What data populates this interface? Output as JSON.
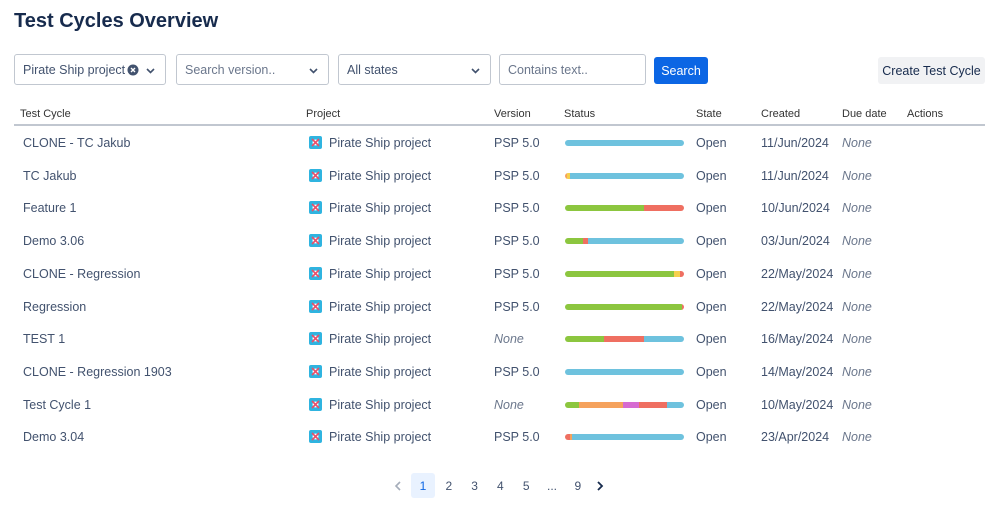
{
  "header": {
    "title": "Test Cycles Overview"
  },
  "filters": {
    "project": "Pirate Ship project",
    "version": "Search version..",
    "state": "All states",
    "text": "Contains text..",
    "search": "Search",
    "create": "Create Test Cycle"
  },
  "table": {
    "columns": [
      "Test Cycle",
      "Project",
      "Version",
      "Status",
      "State",
      "Created",
      "Due date",
      "Actions"
    ],
    "rows": [
      {
        "name": "CLONE - TC Jakub",
        "project": "Pirate Ship project",
        "version": "PSP 5.0",
        "version_italic": false,
        "status": [
          {
            "color": "#6ec2de",
            "value": 100
          }
        ],
        "state": "Open",
        "created": "11/Jun/2024",
        "due": "None"
      },
      {
        "name": "TC Jakub",
        "project": "Pirate Ship project",
        "version": "PSP 5.0",
        "version_italic": false,
        "status": [
          {
            "color": "#f5a25d",
            "value": 2
          },
          {
            "color": "#f5d04d",
            "value": 2
          },
          {
            "color": "#6ec2de",
            "value": 96
          }
        ],
        "state": "Open",
        "created": "11/Jun/2024",
        "due": "None"
      },
      {
        "name": "Feature 1",
        "project": "Pirate Ship project",
        "version": "PSP 5.0",
        "version_italic": false,
        "status": [
          {
            "color": "#8cc63f",
            "value": 66
          },
          {
            "color": "#ef6f61",
            "value": 34
          }
        ],
        "state": "Open",
        "created": "10/Jun/2024",
        "due": "None"
      },
      {
        "name": "Demo 3.06",
        "project": "Pirate Ship project",
        "version": "PSP 5.0",
        "version_italic": false,
        "status": [
          {
            "color": "#8cc63f",
            "value": 15
          },
          {
            "color": "#ef6f61",
            "value": 4
          },
          {
            "color": "#6ec2de",
            "value": 81
          }
        ],
        "state": "Open",
        "created": "03/Jun/2024",
        "due": "None"
      },
      {
        "name": "CLONE - Regression",
        "project": "Pirate Ship project",
        "version": "PSP 5.0",
        "version_italic": false,
        "status": [
          {
            "color": "#8cc63f",
            "value": 92
          },
          {
            "color": "#f5d04d",
            "value": 5
          },
          {
            "color": "#ef6f61",
            "value": 3
          }
        ],
        "state": "Open",
        "created": "22/May/2024",
        "due": "None"
      },
      {
        "name": "Regression",
        "project": "Pirate Ship project",
        "version": "PSP 5.0",
        "version_italic": false,
        "status": [
          {
            "color": "#8cc63f",
            "value": 98
          },
          {
            "color": "#ef6f61",
            "value": 2
          }
        ],
        "state": "Open",
        "created": "22/May/2024",
        "due": "None"
      },
      {
        "name": "TEST 1",
        "project": "Pirate Ship project",
        "version": "None",
        "version_italic": true,
        "status": [
          {
            "color": "#8cc63f",
            "value": 33
          },
          {
            "color": "#ef6f61",
            "value": 33
          },
          {
            "color": "#6ec2de",
            "value": 34
          }
        ],
        "state": "Open",
        "created": "16/May/2024",
        "due": "None"
      },
      {
        "name": "CLONE - Regression 1903",
        "project": "Pirate Ship project",
        "version": "PSP 5.0",
        "version_italic": false,
        "status": [
          {
            "color": "#6ec2de",
            "value": 100
          }
        ],
        "state": "Open",
        "created": "14/May/2024",
        "due": "None"
      },
      {
        "name": "Test Cycle 1",
        "project": "Pirate Ship project",
        "version": "None",
        "version_italic": true,
        "status": [
          {
            "color": "#8cc63f",
            "value": 12
          },
          {
            "color": "#f5a25d",
            "value": 37
          },
          {
            "color": "#d66bd1",
            "value": 13
          },
          {
            "color": "#ef6f61",
            "value": 24
          },
          {
            "color": "#6ec2de",
            "value": 14
          }
        ],
        "state": "Open",
        "created": "10/May/2024",
        "due": "None"
      },
      {
        "name": "Demo 3.04",
        "project": "Pirate Ship project",
        "version": "PSP 5.0",
        "version_italic": false,
        "status": [
          {
            "color": "#ef6f61",
            "value": 4
          },
          {
            "color": "#f5a25d",
            "value": 2
          },
          {
            "color": "#6ec2de",
            "value": 94
          }
        ],
        "state": "Open",
        "created": "23/Apr/2024",
        "due": "None"
      }
    ]
  },
  "pagination": {
    "pages": [
      "1",
      "2",
      "3",
      "4",
      "5",
      "...",
      "9"
    ],
    "current": "1"
  }
}
